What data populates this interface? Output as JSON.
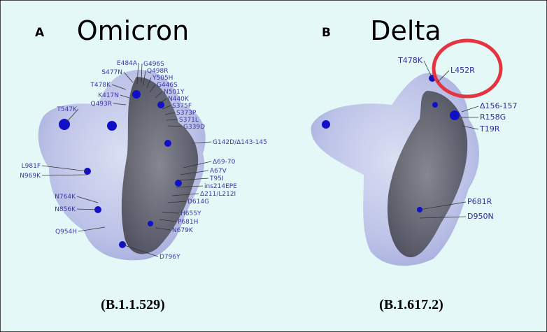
{
  "panels": [
    {
      "letter": "A",
      "title": "Omicron",
      "caption": "(B.1.1.529)",
      "mutations": [
        "E484A",
        "S477N",
        "T478K",
        "K417N",
        "Q493R",
        "T547K",
        "G496S",
        "Q498R",
        "Y505H",
        "G446S",
        "N501Y",
        "N440K",
        "S375F",
        "S373P",
        "S371L",
        "G339D",
        "G142D/Δ143-145",
        "Δ69-70",
        "A67V",
        "T95I",
        "ins214EPE",
        "Δ211/L212I",
        "D614G",
        "H655Y",
        "P681H",
        "N679K",
        "D796Y",
        "L981F",
        "N969K",
        "N764K",
        "N856K",
        "Q954H"
      ]
    },
    {
      "letter": "B",
      "title": "Delta",
      "caption": "(B.1.617.2)",
      "mutations": [
        "T478K",
        "L452R",
        "Δ156-157",
        "R158G",
        "T19R",
        "P681R",
        "D950N"
      ]
    }
  ]
}
